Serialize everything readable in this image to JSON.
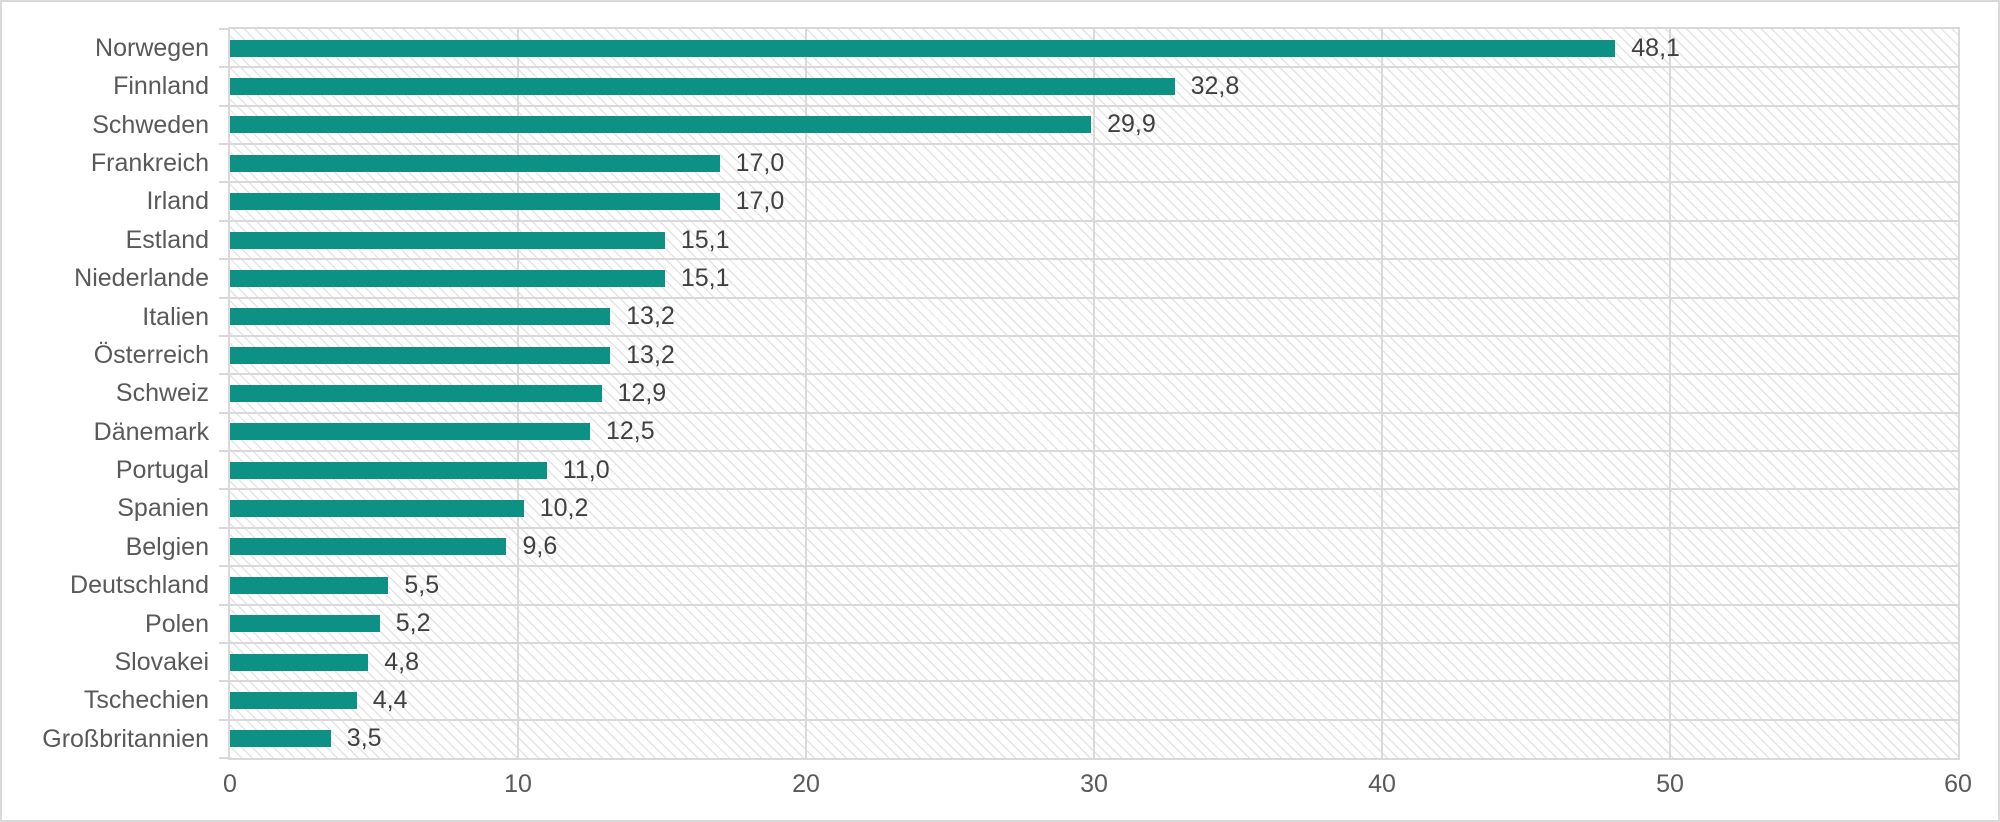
{
  "chart_data": {
    "type": "bar",
    "orientation": "horizontal",
    "title": "",
    "xlabel": "",
    "ylabel": "",
    "xlim": [
      0,
      60
    ],
    "grid": true,
    "legend": false,
    "categories": [
      "Norwegen",
      "Finnland",
      "Schweden",
      "Frankreich",
      "Irland",
      "Estland",
      "Niederlande",
      "Italien",
      "Österreich",
      "Schweiz",
      "Dänemark",
      "Portugal",
      "Spanien",
      "Belgien",
      "Deutschland",
      "Polen",
      "Slovakei",
      "Tschechien",
      "Großbritannien"
    ],
    "values": [
      48.1,
      32.8,
      29.9,
      17.0,
      17.0,
      15.1,
      15.1,
      13.2,
      13.2,
      12.9,
      12.5,
      11.0,
      10.2,
      9.6,
      5.5,
      5.2,
      4.8,
      4.4,
      3.5
    ],
    "value_labels": [
      "48,1",
      "32,8",
      "29,9",
      "17,0",
      "17,0",
      "15,1",
      "15,1",
      "13,2",
      "13,2",
      "12,9",
      "12,5",
      "11,0",
      "10,2",
      "9,6",
      "5,5",
      "5,2",
      "4,8",
      "4,4",
      "3,5"
    ],
    "x_ticks": [
      "0",
      "10",
      "20",
      "30",
      "40",
      "50",
      "60"
    ],
    "colors": {
      "bar": "#0d9184",
      "gridline": "#d9d9d9",
      "hatch": "#e4e4e4",
      "axis_text": "#595959",
      "data_label_text": "#404040",
      "background": "#ffffff"
    }
  }
}
